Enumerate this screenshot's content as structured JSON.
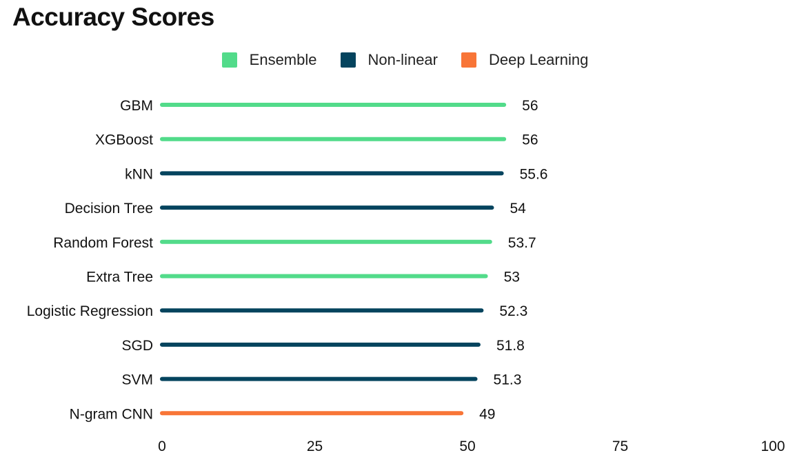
{
  "chart_data": {
    "type": "bar",
    "orientation": "horizontal",
    "title": "Accuracy Scores",
    "legend_position": "top-center",
    "legend": [
      {
        "name": "Ensemble",
        "color": "#52DB8A"
      },
      {
        "name": "Non-linear",
        "color": "#05445E"
      },
      {
        "name": "Deep Learning",
        "color": "#F87537"
      }
    ],
    "categories": [
      "GBM",
      "XGBoost",
      "kNN",
      "Decision Tree",
      "Random Forest",
      "Extra Tree",
      "Logistic Regression",
      "SGD",
      "SVM",
      "N-gram CNN"
    ],
    "values": [
      56,
      56,
      55.6,
      54,
      53.7,
      53,
      52.3,
      51.8,
      51.3,
      49
    ],
    "value_labels": [
      "56",
      "56",
      "55.6",
      "54",
      "53.7",
      "53",
      "52.3",
      "51.8",
      "51.3",
      "49"
    ],
    "groups": [
      "Ensemble",
      "Ensemble",
      "Non-linear",
      "Non-linear",
      "Ensemble",
      "Ensemble",
      "Non-linear",
      "Non-linear",
      "Non-linear",
      "Deep Learning"
    ],
    "xlim": [
      0,
      100
    ],
    "xticks": [
      0,
      25,
      50,
      75,
      100
    ],
    "grid": false,
    "xlabel": "",
    "ylabel": ""
  }
}
